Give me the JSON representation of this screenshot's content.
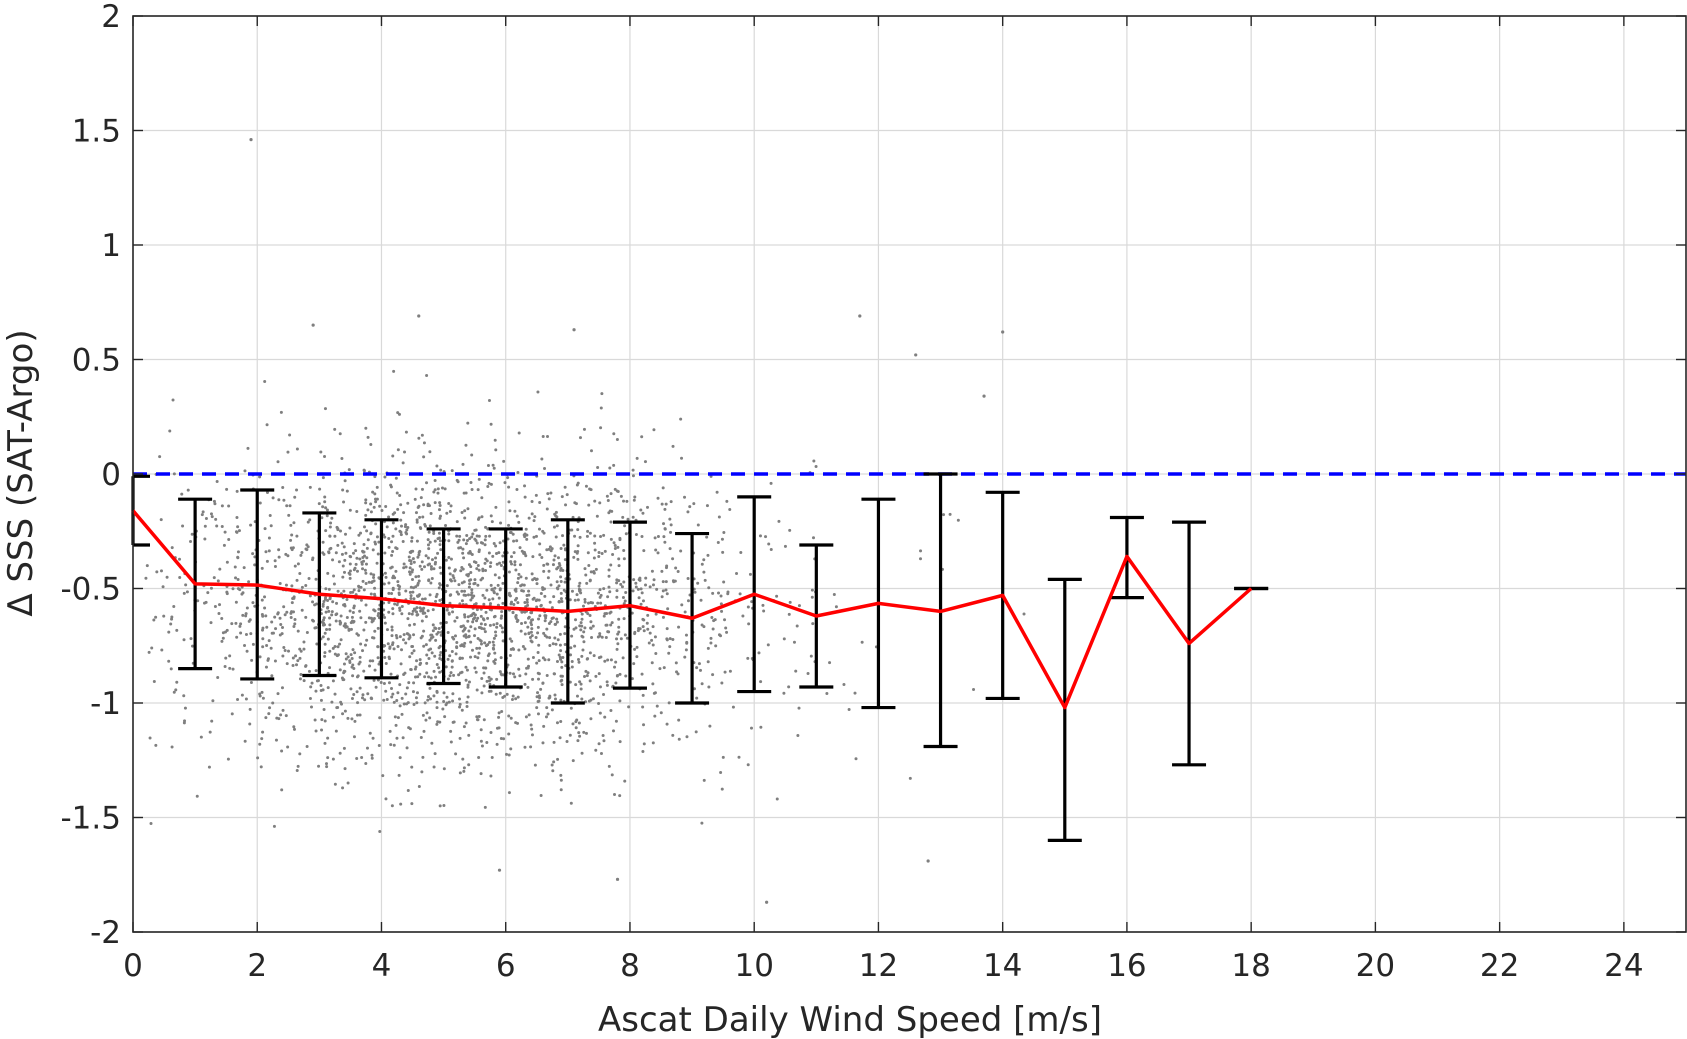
{
  "chart_data": {
    "type": "scatter",
    "xlabel": "Ascat Daily Wind Speed [m/s]",
    "ylabel": "Δ SSS (SAT-Argo)",
    "xlim": [
      0,
      25
    ],
    "ylim": [
      -2,
      2
    ],
    "xticks": [
      0,
      2,
      4,
      6,
      8,
      10,
      12,
      14,
      16,
      18,
      20,
      22,
      24
    ],
    "yticks": [
      -2,
      -1.5,
      -1,
      -0.5,
      0,
      0.5,
      1,
      1.5,
      2
    ],
    "grid": true,
    "colors": {
      "scatter": "#7f7f7f",
      "mean_line": "#ff0000",
      "errorbar": "#000000",
      "reference_line": "#0000ff",
      "grid": "#d9d9d9",
      "axis": "#262626"
    },
    "scatter_cloud": {
      "description_free": true,
      "x_range": [
        0.2,
        14.9
      ],
      "y_center": -0.6,
      "y_spread": 0.32,
      "outliers": [
        {
          "x": 1.9,
          "y": 1.46
        },
        {
          "x": 2.9,
          "y": 0.65
        },
        {
          "x": 4.6,
          "y": 0.69
        },
        {
          "x": 7.1,
          "y": 0.63
        },
        {
          "x": 11.7,
          "y": 0.69
        },
        {
          "x": 14.0,
          "y": 0.62
        },
        {
          "x": 12.6,
          "y": 0.52
        },
        {
          "x": 13.7,
          "y": 0.34
        },
        {
          "x": 10.2,
          "y": -1.87
        },
        {
          "x": 7.8,
          "y": -1.77
        },
        {
          "x": 12.8,
          "y": -1.69
        },
        {
          "x": 5.9,
          "y": -1.73
        }
      ]
    },
    "reference_line": {
      "y": 0,
      "style": "dashed"
    },
    "errorbar_series": {
      "x": [
        0,
        1,
        2,
        3,
        4,
        5,
        6,
        7,
        8,
        9,
        10,
        11,
        12,
        13,
        14,
        15,
        16,
        17,
        18
      ],
      "mean": [
        -0.16,
        -0.48,
        -0.485,
        -0.525,
        -0.545,
        -0.575,
        -0.585,
        -0.6,
        -0.575,
        -0.63,
        -0.525,
        -0.62,
        -0.565,
        -0.6,
        -0.53,
        -1.02,
        -0.36,
        -0.74,
        -0.5
      ],
      "upper": [
        -0.01,
        -0.11,
        -0.07,
        -0.17,
        -0.2,
        -0.24,
        -0.24,
        -0.2,
        -0.21,
        -0.26,
        -0.1,
        -0.31,
        -0.11,
        0.0,
        -0.08,
        -0.46,
        -0.19,
        -0.21,
        -0.5
      ],
      "lower": [
        -0.31,
        -0.85,
        -0.895,
        -0.88,
        -0.89,
        -0.915,
        -0.93,
        -1.0,
        -0.935,
        -1.0,
        -0.95,
        -0.93,
        -1.02,
        -1.19,
        -0.98,
        -1.6,
        -0.54,
        -1.27,
        -0.5
      ]
    }
  }
}
